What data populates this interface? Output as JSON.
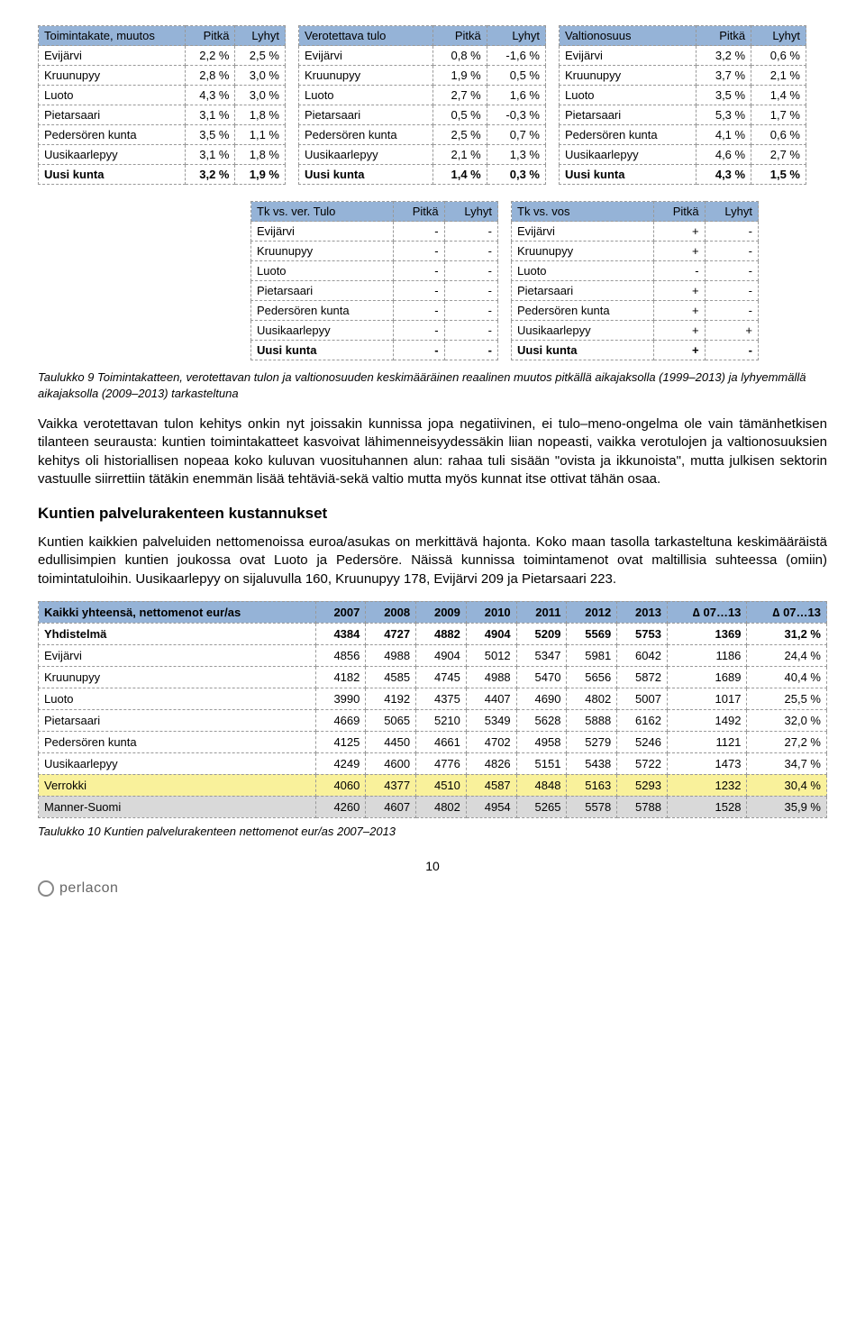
{
  "colors": {
    "header_bg": "#95b3d7",
    "gray_row": "#d9d9d9",
    "yellow_row": "#f9f19b"
  },
  "topTables": [
    {
      "headers": [
        "Toimintakate, muutos",
        "Pitkä",
        "Lyhyt"
      ],
      "rows": [
        [
          "Evijärvi",
          "2,2 %",
          "2,5 %"
        ],
        [
          "Kruunupyy",
          "2,8 %",
          "3,0 %"
        ],
        [
          "Luoto",
          "4,3 %",
          "3,0 %"
        ],
        [
          "Pietarsaari",
          "3,1 %",
          "1,8 %"
        ],
        [
          "Pedersören kunta",
          "3,5 %",
          "1,1 %"
        ],
        [
          "Uusikaarlepyy",
          "3,1 %",
          "1,8 %"
        ]
      ],
      "total": [
        "Uusi kunta",
        "3,2 %",
        "1,9 %"
      ]
    },
    {
      "headers": [
        "Verotettava tulo",
        "Pitkä",
        "Lyhyt"
      ],
      "rows": [
        [
          "Evijärvi",
          "0,8 %",
          "-1,6 %"
        ],
        [
          "Kruunupyy",
          "1,9 %",
          "0,5 %"
        ],
        [
          "Luoto",
          "2,7 %",
          "1,6 %"
        ],
        [
          "Pietarsaari",
          "0,5 %",
          "-0,3 %"
        ],
        [
          "Pedersören kunta",
          "2,5 %",
          "0,7 %"
        ],
        [
          "Uusikaarlepyy",
          "2,1 %",
          "1,3 %"
        ]
      ],
      "total": [
        "Uusi kunta",
        "1,4 %",
        "0,3 %"
      ]
    },
    {
      "headers": [
        "Valtionosuus",
        "Pitkä",
        "Lyhyt"
      ],
      "rows": [
        [
          "Evijärvi",
          "3,2 %",
          "0,6 %"
        ],
        [
          "Kruunupyy",
          "3,7 %",
          "2,1 %"
        ],
        [
          "Luoto",
          "3,5 %",
          "1,4 %"
        ],
        [
          "Pietarsaari",
          "5,3 %",
          "1,7 %"
        ],
        [
          "Pedersören kunta",
          "4,1 %",
          "0,6 %"
        ],
        [
          "Uusikaarlepyy",
          "4,6 %",
          "2,7 %"
        ]
      ],
      "total": [
        "Uusi kunta",
        "4,3 %",
        "1,5 %"
      ]
    }
  ],
  "midTables": [
    {
      "headers": [
        "Tk vs. ver. Tulo",
        "Pitkä",
        "Lyhyt"
      ],
      "rows": [
        [
          "Evijärvi",
          "-",
          "-"
        ],
        [
          "Kruunupyy",
          "-",
          "-"
        ],
        [
          "Luoto",
          "-",
          "-"
        ],
        [
          "Pietarsaari",
          "-",
          "-"
        ],
        [
          "Pedersören kunta",
          "-",
          "-"
        ],
        [
          "Uusikaarlepyy",
          "-",
          "-"
        ]
      ],
      "total": [
        "Uusi kunta",
        "-",
        "-"
      ]
    },
    {
      "headers": [
        "Tk vs. vos",
        "Pitkä",
        "Lyhyt"
      ],
      "rows": [
        [
          "Evijärvi",
          "+",
          "-"
        ],
        [
          "Kruunupyy",
          "+",
          "-"
        ],
        [
          "Luoto",
          "-",
          "-"
        ],
        [
          "Pietarsaari",
          "+",
          "-"
        ],
        [
          "Pedersören kunta",
          "+",
          "-"
        ],
        [
          "Uusikaarlepyy",
          "+",
          "+"
        ]
      ],
      "total": [
        "Uusi kunta",
        "+",
        "-"
      ]
    }
  ],
  "caption1": "Taulukko 9 Toimintakatteen, verotettavan tulon ja valtionosuuden keskimääräinen reaalinen muutos pitkällä aikajaksolla (1999–2013) ja lyhyemmällä aikajaksolla (2009–2013) tarkasteltuna",
  "para1": "Vaikka verotettavan tulon kehitys onkin nyt joissakin kunnissa jopa negatiivinen, ei tulo–meno-ongelma ole vain tämänhetkisen tilanteen seurausta: kuntien toimintakatteet kasvoivat lähimenneisyydessäkin liian nopeasti, vaikka verotulojen ja valtionosuuksien kehitys oli historiallisen nopeaa koko kuluvan vuosituhannen alun: rahaa tuli sisään \"ovista ja ikkunoista\", mutta julkisen sektorin vastuulle siirrettiin tätäkin enemmän lisää tehtäviä-sekä valtio mutta myös kunnat itse ottivat tähän osaa.",
  "h2": "Kuntien palvelurakenteen kustannukset",
  "para2": "Kuntien kaikkien palveluiden nettomenoissa euroa/asukas on merkittävä hajonta. Koko maan tasolla tarkasteltuna keskimääräistä edullisimpien kuntien joukossa ovat Luoto ja Pedersöre. Näissä kunnissa toimintamenot ovat maltillisia suhteessa (omiin) toimintatuloihin. Uusikaarlepyy on sijaluvulla 160, Kruunupyy 178, Evijärvi 209 ja Pietarsaari 223.",
  "wideTable": {
    "headers": [
      "Kaikki yhteensä, nettomenot eur/as",
      "2007",
      "2008",
      "2009",
      "2010",
      "2011",
      "2012",
      "2013",
      "∆ 07…13",
      "∆ 07…13"
    ],
    "rows": [
      {
        "cells": [
          "Yhdistelmä",
          "4384",
          "4727",
          "4882",
          "4904",
          "5209",
          "5569",
          "5753",
          "1369",
          "31,2 %"
        ],
        "style": "bold"
      },
      {
        "cells": [
          "Evijärvi",
          "4856",
          "4988",
          "4904",
          "5012",
          "5347",
          "5981",
          "6042",
          "1186",
          "24,4 %"
        ],
        "style": ""
      },
      {
        "cells": [
          "Kruunupyy",
          "4182",
          "4585",
          "4745",
          "4988",
          "5470",
          "5656",
          "5872",
          "1689",
          "40,4 %"
        ],
        "style": ""
      },
      {
        "cells": [
          "Luoto",
          "3990",
          "4192",
          "4375",
          "4407",
          "4690",
          "4802",
          "5007",
          "1017",
          "25,5 %"
        ],
        "style": ""
      },
      {
        "cells": [
          "Pietarsaari",
          "4669",
          "5065",
          "5210",
          "5349",
          "5628",
          "5888",
          "6162",
          "1492",
          "32,0 %"
        ],
        "style": ""
      },
      {
        "cells": [
          "Pedersören kunta",
          "4125",
          "4450",
          "4661",
          "4702",
          "4958",
          "5279",
          "5246",
          "1121",
          "27,2 %"
        ],
        "style": ""
      },
      {
        "cells": [
          "Uusikaarlepyy",
          "4249",
          "4600",
          "4776",
          "4826",
          "5151",
          "5438",
          "5722",
          "1473",
          "34,7 %"
        ],
        "style": ""
      },
      {
        "cells": [
          "Verrokki",
          "4060",
          "4377",
          "4510",
          "4587",
          "4848",
          "5163",
          "5293",
          "1232",
          "30,4 %"
        ],
        "style": "yellow"
      },
      {
        "cells": [
          "Manner-Suomi",
          "4260",
          "4607",
          "4802",
          "4954",
          "5265",
          "5578",
          "5788",
          "1528",
          "35,9 %"
        ],
        "style": "gray"
      }
    ]
  },
  "caption2": "Taulukko 10 Kuntien palvelurakenteen nettomenot eur/as 2007–2013",
  "pageNum": "10",
  "footerText": "perlacon"
}
